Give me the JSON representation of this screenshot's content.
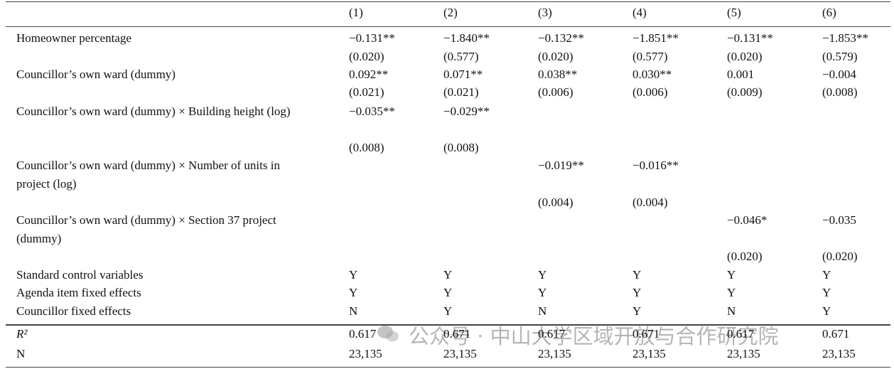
{
  "table": {
    "header": [
      "(1)",
      "(2)",
      "(3)",
      "(4)",
      "(5)",
      "(6)"
    ],
    "rows": [
      [
        "Homeowner percentage",
        "−0.131**",
        "−1.840**",
        "−0.132**",
        "−1.851**",
        "−0.131**",
        "−1.853**"
      ],
      [
        null,
        "(0.020)",
        "(0.577)",
        "(0.020)",
        "(0.577)",
        "(0.020)",
        "(0.579)"
      ],
      [
        "Councillor’s own ward (dummy)",
        "0.092**",
        "0.071**",
        "0.038**",
        "0.030**",
        "0.001",
        "−0.004"
      ],
      [
        null,
        "(0.021)",
        "(0.021)",
        "(0.006)",
        "(0.006)",
        "(0.009)",
        "(0.008)"
      ],
      [
        "Councillor’s own ward (dummy) × Building height (log)",
        "−0.035**",
        "−0.029**",
        null,
        null,
        null,
        null
      ],
      [
        null,
        "(0.008)",
        "(0.008)",
        null,
        null,
        null,
        null
      ],
      [
        "Councillor’s own ward (dummy) × Number of units in project (log)",
        null,
        null,
        "−0.019**",
        "−0.016**",
        null,
        null
      ],
      [
        null,
        null,
        null,
        "(0.004)",
        "(0.004)",
        null,
        null
      ],
      [
        "Councillor’s own ward (dummy) × Section 37 project (dummy)",
        null,
        null,
        null,
        null,
        "−0.046*",
        "−0.035"
      ],
      [
        null,
        null,
        null,
        null,
        null,
        "(0.020)",
        "(0.020)"
      ],
      [
        "Standard control variables",
        "Y",
        "Y",
        "Y",
        "Y",
        "Y",
        "Y"
      ],
      [
        "Agenda item fixed effects",
        "Y",
        "Y",
        "Y",
        "Y",
        "Y",
        "Y"
      ],
      [
        "Councillor fixed effects",
        "N",
        "Y",
        "N",
        "Y",
        "N",
        "Y"
      ],
      [
        "R²",
        "0.617",
        "0.671",
        "0.617",
        "0.671",
        "0.617",
        "0.671"
      ],
      [
        "N",
        "23,135",
        "23,135",
        "23,135",
        "23,135",
        "23,135",
        "23,135"
      ]
    ]
  },
  "watermark": "公众号 · 中山大学区域开放与合作研究院"
}
